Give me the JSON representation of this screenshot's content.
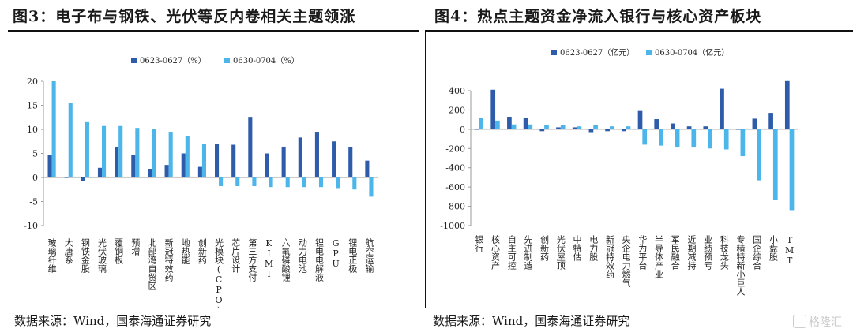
{
  "left": {
    "title": "图3：电子布与钢铁、光伏等反内卷相关主题领涨",
    "source": "数据来源：Wind，国泰海通证券研究"
  },
  "right": {
    "title": "图4：热点主题资金净流入银行与核心资产板块",
    "source": "数据来源：Wind，国泰海通证券研究"
  },
  "watermark": "格隆汇",
  "colors": {
    "series1": "#2e5cab",
    "series2": "#4cb5ea"
  },
  "chart_data": [
    {
      "type": "bar",
      "ylim": [
        -10,
        20
      ],
      "yticks": [
        -10,
        -5,
        0,
        5,
        10,
        15,
        20
      ],
      "grid": false,
      "legend_position": "top",
      "categories": [
        "玻璃纤维",
        "大唐系",
        "钢铁金股",
        "光伏玻璃",
        "覆铜板",
        "预增",
        "北部湾自贸区",
        "新冠特效药",
        "地热能",
        "创新药",
        "光模块(CPO)",
        "芯片设计",
        "第三方支付",
        "KIMI",
        "六氟磷酸锂",
        "动力电池",
        "锂电电解液",
        "GPU",
        "锂电正极",
        "航空运输"
      ],
      "series": [
        {
          "name": "0623-0627（%）",
          "values": [
            4.7,
            0.0,
            -0.7,
            2.0,
            6.4,
            4.7,
            1.8,
            2.6,
            5.0,
            2.2,
            7.0,
            6.8,
            12.6,
            5.0,
            6.4,
            8.3,
            9.5,
            7.5,
            6.3,
            3.5
          ]
        },
        {
          "name": "0630-0704（%）",
          "values": [
            20.0,
            15.5,
            11.5,
            10.7,
            10.7,
            10.3,
            10.0,
            9.5,
            8.6,
            7.0,
            -1.8,
            -1.8,
            -1.8,
            -2.0,
            -2.0,
            -2.0,
            -2.0,
            -2.2,
            -2.5,
            -4.0
          ]
        }
      ]
    },
    {
      "type": "bar",
      "ylim": [
        -1000,
        400
      ],
      "yticks": [
        -1000,
        -800,
        -600,
        -400,
        -200,
        0,
        200,
        400
      ],
      "grid": false,
      "legend_position": "top",
      "categories": [
        "银行",
        "核心资产",
        "自主可控",
        "先进制造",
        "创新药",
        "光伏屋顶",
        "中特估",
        "电力股",
        "新冠特效药",
        "央企电力燃气",
        "华为平台",
        "半导体产业",
        "军民融合",
        "近期减持",
        "业绩预亏",
        "科技龙头",
        "专精特新小巨人",
        "国企综合",
        "小盘股",
        "TMT"
      ],
      "series": [
        {
          "name": "0623-0627（亿元）",
          "values": [
            0,
            410,
            130,
            120,
            -20,
            20,
            20,
            -30,
            -20,
            -20,
            190,
            105,
            60,
            30,
            30,
            420,
            0,
            110,
            170,
            500
          ]
        },
        {
          "name": "0630-0704（亿元）",
          "values": [
            120,
            90,
            50,
            50,
            40,
            40,
            30,
            40,
            30,
            30,
            -160,
            -170,
            -190,
            -190,
            -200,
            -210,
            -280,
            -530,
            -730,
            -840
          ]
        }
      ]
    }
  ]
}
